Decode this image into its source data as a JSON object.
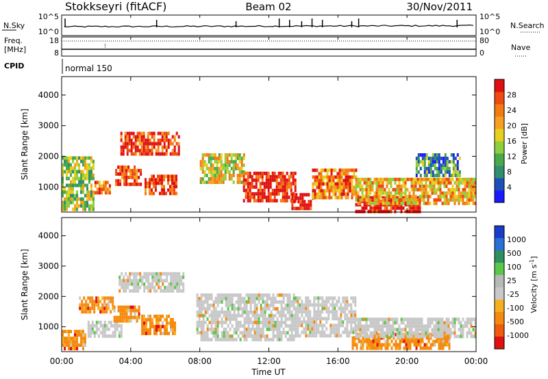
{
  "header": {
    "station": "Stokkseyri (fitACF)",
    "beam": "Beam 02",
    "date": "30/Nov/2011"
  },
  "top_panel": {
    "left_label": "N.Sky",
    "right_label": "N.Search",
    "left_ticks": [
      "10^5",
      "10^0"
    ],
    "right_ticks": [
      "10^5",
      "10^0"
    ]
  },
  "freq_panel": {
    "left_label_1": "Freq.",
    "left_label_2": "[MHz]",
    "right_label": "Nave",
    "left_ticks": [
      "18",
      "8"
    ],
    "right_ticks": [
      "80",
      "0"
    ]
  },
  "cpid": {
    "label": "CPID",
    "mode": "normal 150"
  },
  "x_axis": {
    "label": "Time UT",
    "ticks": [
      "00:00",
      "04:00",
      "08:00",
      "12:00",
      "16:00",
      "20:00",
      "00:00"
    ]
  },
  "chart_data": [
    {
      "type": "heatmap",
      "ylabel": "Slant Range [km]",
      "xlabel": "Time UT",
      "y_ticks": [
        1000,
        2000,
        3000,
        4000
      ],
      "ylim": [
        180,
        4600
      ],
      "xlim_hours": [
        0,
        24
      ],
      "colorbar": {
        "label": "Power [dB]",
        "ticks": [
          "4",
          "8",
          "12",
          "16",
          "20",
          "24",
          "28"
        ],
        "colors": [
          "#1a1aff",
          "#1f4fb8",
          "#2f8f6f",
          "#4aa94a",
          "#8fcf3f",
          "#e8d020",
          "#f5a020",
          "#f57a10",
          "#ef4a10",
          "#e01010"
        ]
      },
      "regions": [
        {
          "t0": 0.0,
          "t1": 1.8,
          "r0": 250,
          "r1": 2000,
          "level": 0.45
        },
        {
          "t0": 1.9,
          "t1": 2.8,
          "r0": 800,
          "r1": 1200,
          "level": 0.7
        },
        {
          "t0": 3.1,
          "t1": 4.6,
          "r0": 1100,
          "r1": 1700,
          "level": 0.85
        },
        {
          "t0": 4.8,
          "t1": 6.6,
          "r0": 800,
          "r1": 1400,
          "level": 0.9
        },
        {
          "t0": 3.4,
          "t1": 6.8,
          "r0": 2100,
          "r1": 2800,
          "level": 0.9
        },
        {
          "t0": 8.0,
          "t1": 10.5,
          "r0": 1200,
          "r1": 2100,
          "level": 0.55
        },
        {
          "t0": 10.5,
          "t1": 13.5,
          "r0": 600,
          "r1": 1500,
          "level": 0.95
        },
        {
          "t0": 13.3,
          "t1": 14.5,
          "r0": 300,
          "r1": 800,
          "level": 1.0
        },
        {
          "t0": 14.5,
          "t1": 17.0,
          "r0": 600,
          "r1": 1600,
          "level": 0.75
        },
        {
          "t0": 17.0,
          "t1": 20.8,
          "r0": 250,
          "r1": 700,
          "level": 1.0
        },
        {
          "t0": 17.0,
          "t1": 24.0,
          "r0": 500,
          "r1": 1300,
          "level": 0.65
        },
        {
          "t0": 20.5,
          "t1": 23.0,
          "r0": 1400,
          "r1": 2100,
          "level": 0.3
        }
      ]
    },
    {
      "type": "heatmap",
      "ylabel": "Slant Range [km]",
      "xlabel": "Time UT",
      "y_ticks": [
        1000,
        2000,
        3000,
        4000
      ],
      "ylim": [
        180,
        4600
      ],
      "xlim_hours": [
        0,
        24
      ],
      "colorbar": {
        "label": "Velocity [m s^-1]",
        "ticks": [
          "1000",
          "500",
          "100",
          "25",
          "-25",
          "-100",
          "-500",
          "-1000"
        ],
        "colors": [
          "#1a3cc8",
          "#2a6fd8",
          "#2e8f5f",
          "#5cc64a",
          "#b8b8b8",
          "#c8c8c8",
          "#f5b020",
          "#f58a10",
          "#f25a10",
          "#e01010"
        ]
      },
      "regions": [
        {
          "t0": 0.0,
          "t1": 1.4,
          "r0": 250,
          "r1": 900,
          "level": "orange"
        },
        {
          "t0": 1.0,
          "t1": 3.0,
          "r0": 1500,
          "r1": 2000,
          "level": "orange"
        },
        {
          "t0": 1.5,
          "t1": 3.5,
          "r0": 700,
          "r1": 1200,
          "level": "gray"
        },
        {
          "t0": 3.0,
          "t1": 4.5,
          "r0": 1200,
          "r1": 1700,
          "level": "orange"
        },
        {
          "t0": 4.6,
          "t1": 6.6,
          "r0": 800,
          "r1": 1400,
          "level": "orange"
        },
        {
          "t0": 3.3,
          "t1": 7.0,
          "r0": 2200,
          "r1": 2800,
          "level": "gray"
        },
        {
          "t0": 7.8,
          "t1": 13.5,
          "r0": 600,
          "r1": 2100,
          "level": "gray"
        },
        {
          "t0": 13.5,
          "t1": 17.0,
          "r0": 700,
          "r1": 2000,
          "level": "gray"
        },
        {
          "t0": 16.8,
          "t1": 22.5,
          "r0": 300,
          "r1": 800,
          "level": "orange"
        },
        {
          "t0": 17.0,
          "t1": 24.0,
          "r0": 700,
          "r1": 1300,
          "level": "gray"
        }
      ]
    }
  ]
}
